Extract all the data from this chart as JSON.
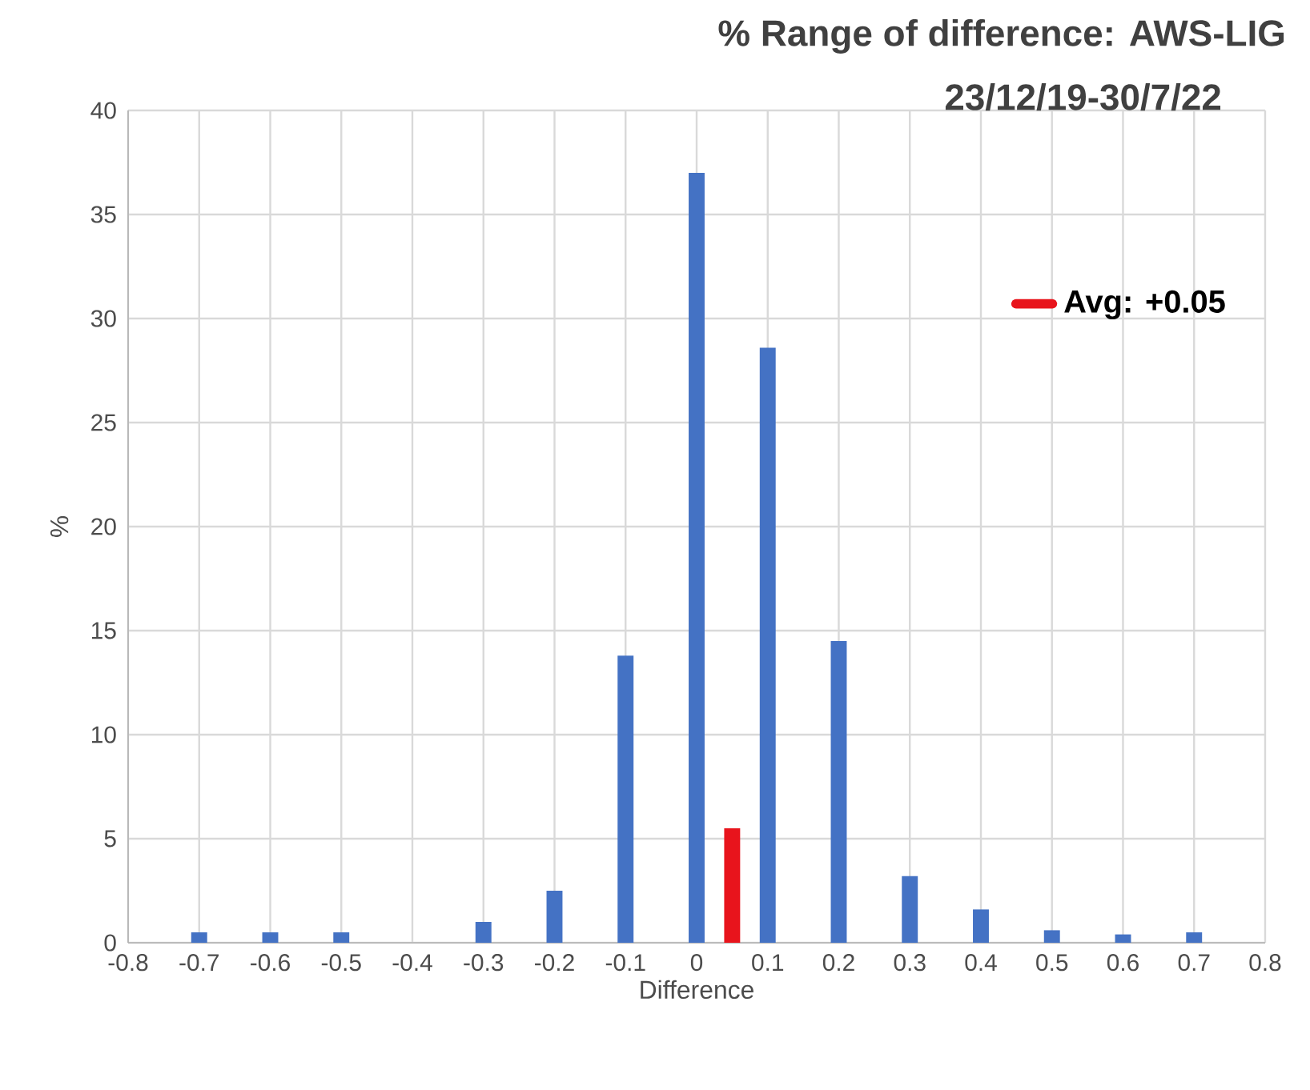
{
  "chart_data": {
    "type": "bar",
    "title": "% Range of difference: AWS-LIG",
    "subtitle": "23/12/19-30/7/22",
    "xlabel": "Difference",
    "ylabel": "%",
    "series": [
      {
        "color": "#4472c4",
        "x": [
          -0.7,
          -0.6,
          -0.5,
          -0.3,
          -0.2,
          -0.1,
          0,
          0.1,
          0.2,
          0.3,
          0.4,
          0.5,
          0.6,
          0.7
        ],
        "values": [
          0.5,
          0.5,
          0.5,
          1.0,
          2.5,
          13.8,
          37,
          28.6,
          14.5,
          3.2,
          1.6,
          0.6,
          0.4,
          0.5
        ]
      },
      {
        "name": "Avg: +0.05",
        "color": "#e8141c",
        "x": [
          0.05
        ],
        "values": [
          5.5
        ]
      }
    ],
    "xlim": [
      -0.8,
      0.8
    ],
    "xticks": [
      -0.8,
      -0.7,
      -0.6,
      -0.5,
      -0.4,
      -0.3,
      -0.2,
      -0.1,
      0,
      0.1,
      0.2,
      0.3,
      0.4,
      0.5,
      0.6,
      0.7,
      0.8
    ],
    "ylim": [
      0,
      40
    ],
    "yticks": [
      0,
      5,
      10,
      15,
      20,
      25,
      30,
      35,
      40
    ],
    "grid": true,
    "legend": "top right"
  }
}
